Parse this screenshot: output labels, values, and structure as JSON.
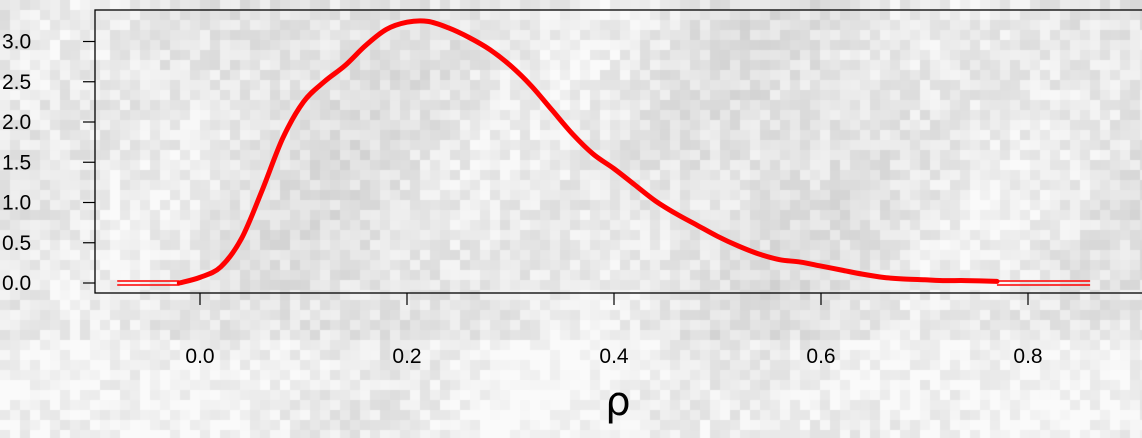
{
  "chart_data": {
    "type": "line",
    "title": "",
    "xlabel": "ρ",
    "ylabel": "",
    "xlim": [
      -0.1,
      0.9
    ],
    "ylim": [
      0.0,
      3.25
    ],
    "x_ticks": [
      "0.0",
      "0.2",
      "0.4",
      "0.6",
      "0.8"
    ],
    "y_ticks": [
      "0.0",
      "0.5",
      "1.0",
      "1.5",
      "2.0",
      "2.5",
      "3.0"
    ],
    "grid": false,
    "legend": "none",
    "series": [
      {
        "color": "#ff0000",
        "x": [
          -0.02,
          0.0,
          0.02,
          0.04,
          0.06,
          0.08,
          0.1,
          0.12,
          0.14,
          0.16,
          0.18,
          0.2,
          0.22,
          0.24,
          0.26,
          0.28,
          0.3,
          0.32,
          0.34,
          0.36,
          0.38,
          0.4,
          0.42,
          0.44,
          0.46,
          0.48,
          0.5,
          0.52,
          0.54,
          0.56,
          0.58,
          0.6,
          0.62,
          0.64,
          0.66,
          0.68,
          0.7,
          0.72,
          0.74,
          0.77
        ],
        "values": [
          0.0,
          0.07,
          0.2,
          0.55,
          1.15,
          1.8,
          2.25,
          2.5,
          2.7,
          2.95,
          3.15,
          3.24,
          3.25,
          3.17,
          3.05,
          2.9,
          2.7,
          2.45,
          2.15,
          1.85,
          1.6,
          1.42,
          1.22,
          1.02,
          0.86,
          0.72,
          0.58,
          0.46,
          0.36,
          0.29,
          0.26,
          0.21,
          0.16,
          0.11,
          0.07,
          0.05,
          0.04,
          0.03,
          0.03,
          0.02
        ]
      }
    ],
    "flat_segments": [
      {
        "color": "#ff0000",
        "x": [
          -0.08,
          -0.02
        ],
        "y": 0.0
      },
      {
        "color": "#ff0000",
        "x": [
          0.77,
          0.86
        ],
        "y": 0.0
      }
    ]
  }
}
